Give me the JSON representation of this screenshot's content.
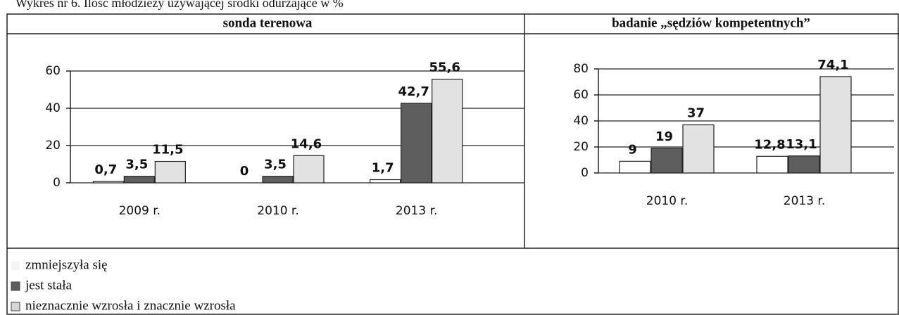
{
  "caption": "Wykres nr 6. Ilość młodzieży używającej środki odurzające w %",
  "legend": {
    "items": [
      {
        "name": "zmniejszyła się",
        "color": "#f4f4f4"
      },
      {
        "name": "jest stała",
        "color": "#5e5e5e"
      },
      {
        "name": "nieznacznie wzrosła i znacznie wzrosła",
        "color": "#d6d6d6"
      }
    ]
  },
  "chart_data": [
    {
      "type": "bar",
      "title": "sonda terenowa",
      "categories": [
        "2009 r.",
        "2010 r.",
        "2013 r."
      ],
      "series": [
        {
          "color": "#ffffff",
          "values": [
            0.7,
            0,
            1.7
          ],
          "value_labels": [
            "0,7",
            "0",
            "1,7"
          ]
        },
        {
          "color": "#5e5e5e",
          "values": [
            3.5,
            3.5,
            42.7
          ],
          "value_labels": [
            "3,5",
            "3,5",
            "42,7"
          ]
        },
        {
          "color": "#e2e2e2",
          "values": [
            11.5,
            14.6,
            55.6
          ],
          "value_labels": [
            "11,5",
            "14,6",
            "55,6"
          ]
        }
      ],
      "ylim": [
        0,
        60
      ],
      "yticks": [
        0,
        20,
        40,
        60
      ],
      "grid": true
    },
    {
      "type": "bar",
      "title": "badanie „sędziów kompetentnych”",
      "categories": [
        "2010 r.",
        "2013 r."
      ],
      "series": [
        {
          "color": "#ffffff",
          "values": [
            9,
            12.8
          ],
          "value_labels": [
            "9",
            "12,8"
          ]
        },
        {
          "color": "#5e5e5e",
          "values": [
            19,
            13.1
          ],
          "value_labels": [
            "19",
            "13,1"
          ]
        },
        {
          "color": "#e2e2e2",
          "values": [
            37,
            74.1
          ],
          "value_labels": [
            "37",
            "74,1"
          ]
        }
      ],
      "ylim": [
        0,
        80
      ],
      "yticks": [
        0,
        20,
        40,
        60,
        80
      ],
      "grid": true
    }
  ]
}
